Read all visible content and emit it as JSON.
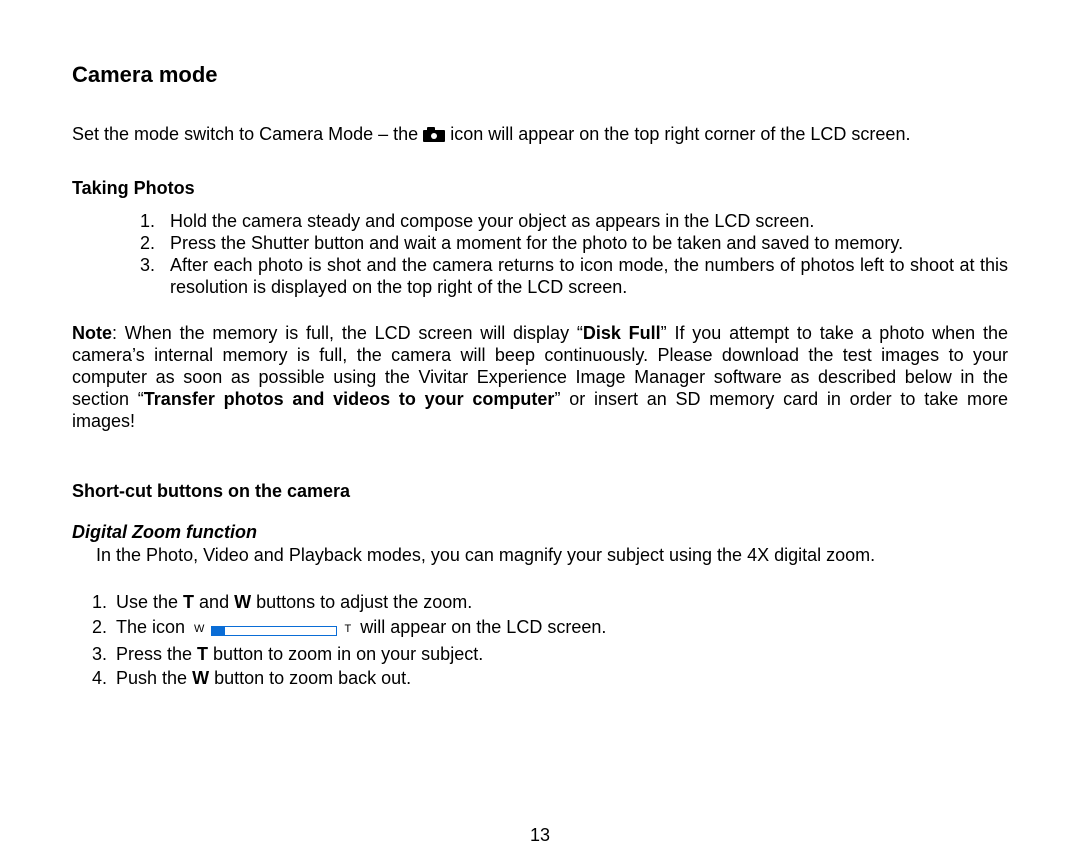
{
  "doc": {
    "title": "Camera mode",
    "intro_pre": "Set the mode switch to Camera Mode – the ",
    "intro_post": " icon will appear on the top right corner of the LCD screen.",
    "section_photos": {
      "heading": "Taking Photos",
      "items": [
        "Hold the camera steady and compose your object as appears in the LCD screen.",
        "Press the Shutter button and wait a moment for the photo to be taken and saved to memory.",
        "After each photo is shot and the camera returns to icon mode, the numbers of photos left to shoot at this resolution is displayed on the top right of the LCD screen."
      ],
      "note_label": "Note",
      "note_p1": ": When the memory is full, the LCD screen will display “",
      "note_b1": "Disk Full",
      "note_p2": "” If you attempt to take a photo when the camera’s internal memory is full, the camera will beep continuously. Please download the test images to your computer as soon as possible using the Vivitar Experience Image Manager software as described below in the section “",
      "note_b2": "Transfer photos and videos to your computer",
      "note_p3": "” or insert an SD memory card in order to take more images!"
    },
    "section_shortcut": {
      "heading": "Short-cut buttons on the camera",
      "sub_heading": "Digital Zoom function",
      "intro": "In the Photo, Video and Playback modes, you can magnify your subject using the 4X digital zoom.",
      "li1_a": "Use the ",
      "li1_b1": "T",
      "li1_b": " and ",
      "li1_b2": "W",
      "li1_c": " buttons to adjust the zoom.",
      "li2_a": "The icon ",
      "li2_b": " will appear on the LCD screen.",
      "li3_a": "Press the ",
      "li3_b": "T",
      "li3_c": " button to zoom in on your subject.",
      "li4_a": "Push the ",
      "li4_b": "W",
      "li4_c": " button to zoom back out."
    },
    "page_num": "13",
    "zoom_bar": {
      "left_label": "W",
      "right_label": "T",
      "color": "#0a6dd6"
    }
  }
}
